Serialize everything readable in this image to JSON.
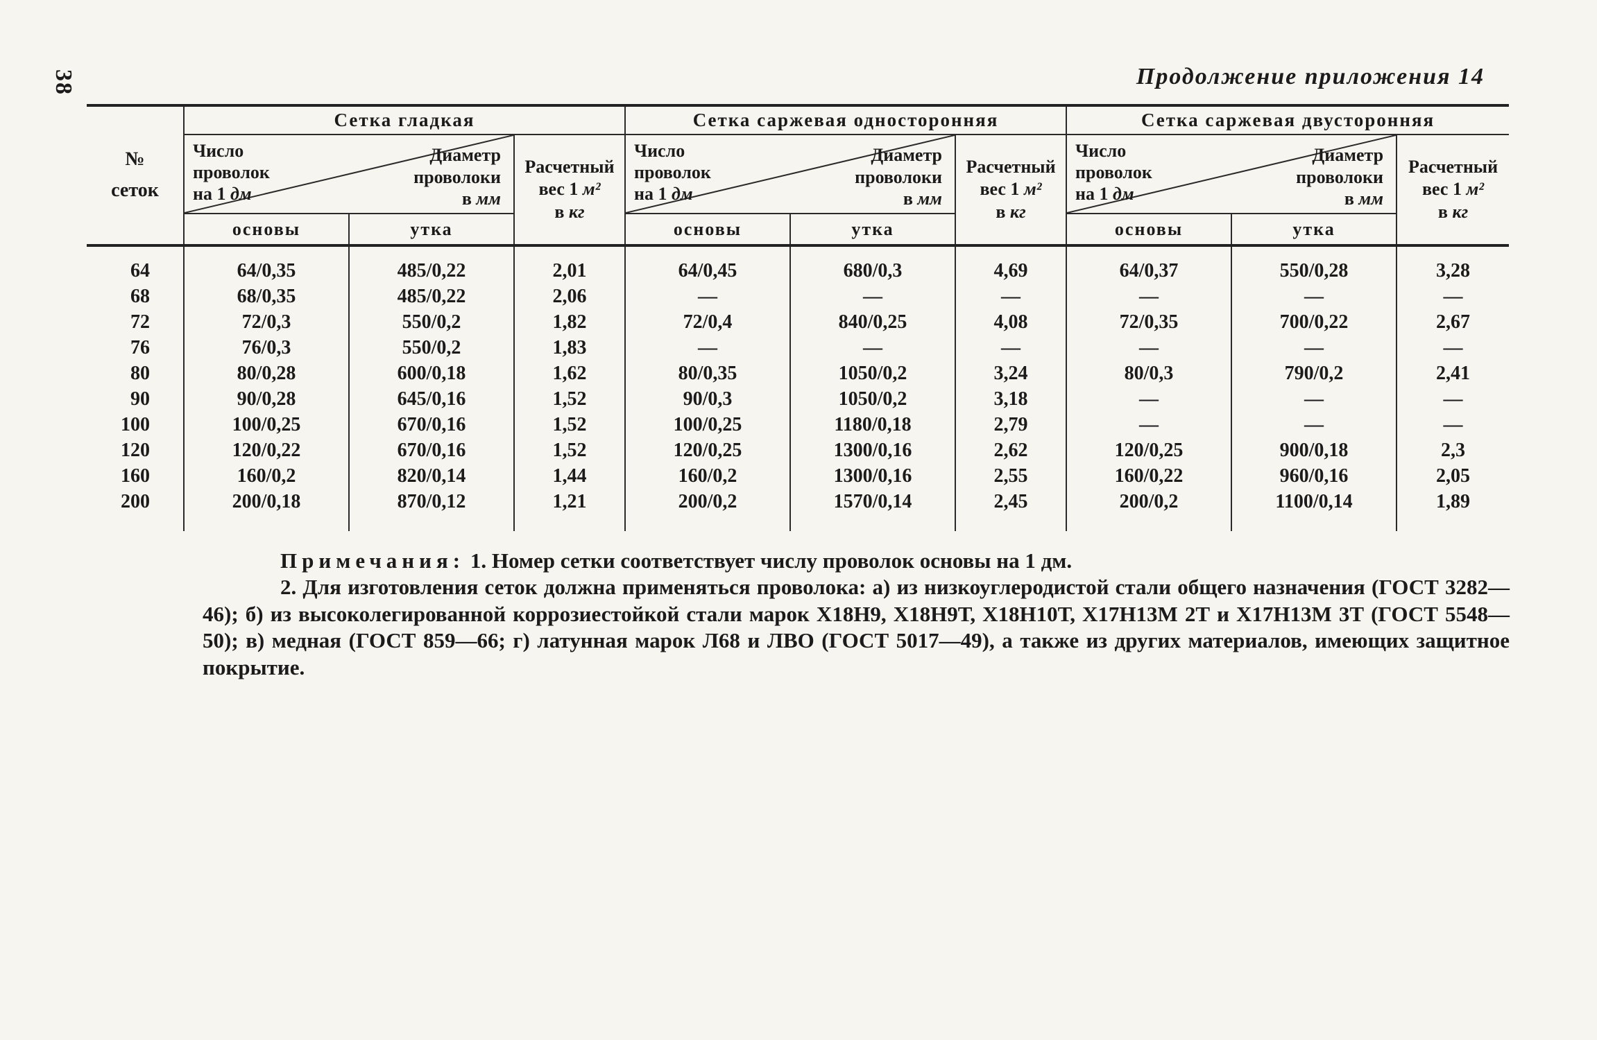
{
  "page": {
    "number": "38",
    "title": "Продолжение приложения 14"
  },
  "table": {
    "corner": [
      "№",
      "сеток"
    ],
    "groups": [
      {
        "title": "Сетка гладкая"
      },
      {
        "title": "Сетка саржевая односторонняя"
      },
      {
        "title": "Сетка саржевая двусторонняя"
      }
    ],
    "colhead": {
      "count": [
        "Число",
        "проволок",
        "на 1 "
      ],
      "count_unit": "дм",
      "diam": [
        "Диаметр",
        "проволоки",
        "в "
      ],
      "diam_unit": "мм",
      "weight_line1": "Расчетный",
      "weight_line2": "вес 1 ",
      "weight_unit1": "м²",
      "weight_line3": "в ",
      "weight_unit2": "кг",
      "warp": "основы",
      "weft": "утка"
    },
    "rows": [
      [
        "64",
        "64/0,35",
        "485/0,22",
        "2,01",
        "64/0,45",
        "680/0,3",
        "4,69",
        "64/0,37",
        "550/0,28",
        "3,28"
      ],
      [
        "68",
        "68/0,35",
        "485/0,22",
        "2,06",
        "—",
        "—",
        "—",
        "—",
        "—",
        "—"
      ],
      [
        "72",
        "72/0,3",
        "550/0,2",
        "1,82",
        "72/0,4",
        "840/0,25",
        "4,08",
        "72/0,35",
        "700/0,22",
        "2,67"
      ],
      [
        "76",
        "76/0,3",
        "550/0,2",
        "1,83",
        "—",
        "—",
        "—",
        "—",
        "—",
        "—"
      ],
      [
        "80",
        "80/0,28",
        "600/0,18",
        "1,62",
        "80/0,35",
        "1050/0,2",
        "3,24",
        "80/0,3",
        "790/0,2",
        "2,41"
      ],
      [
        "90",
        "90/0,28",
        "645/0,16",
        "1,52",
        "90/0,3",
        "1050/0,2",
        "3,18",
        "—",
        "—",
        "—"
      ],
      [
        "100",
        "100/0,25",
        "670/0,16",
        "1,52",
        "100/0,25",
        "1180/0,18",
        "2,79",
        "—",
        "—",
        "—"
      ],
      [
        "120",
        "120/0,22",
        "670/0,16",
        "1,52",
        "120/0,25",
        "1300/0,16",
        "2,62",
        "120/0,25",
        "900/0,18",
        "2,3"
      ],
      [
        "160",
        "160/0,2",
        "820/0,14",
        "1,44",
        "160/0,2",
        "1300/0,16",
        "2,55",
        "160/0,22",
        "960/0,16",
        "2,05"
      ],
      [
        "200",
        "200/0,18",
        "870/0,12",
        "1,21",
        "200/0,2",
        "1570/0,14",
        "2,45",
        "200/0,2",
        "1100/0,14",
        "1,89"
      ]
    ]
  },
  "notes": {
    "label": "Примечания:",
    "item1": "1. Номер сетки соответствует числу проволок основы на 1 дм.",
    "item2": "2. Для изготовления сеток должна применяться проволока: а) из низкоуглеродистой стали общего назначения (ГОСТ 3282—46); б) из высоколегированной коррозиестойкой стали марок Х18Н9, Х18Н9Т, Х18Н10Т, Х17Н13М 2Т и Х17Н13М 3Т (ГОСТ 5548—50); в) медная (ГОСТ 859—66; г) латунная марок Л68 и ЛВО (ГОСТ 5017—49), а также из других материалов, имеющих защитное покрытие."
  }
}
